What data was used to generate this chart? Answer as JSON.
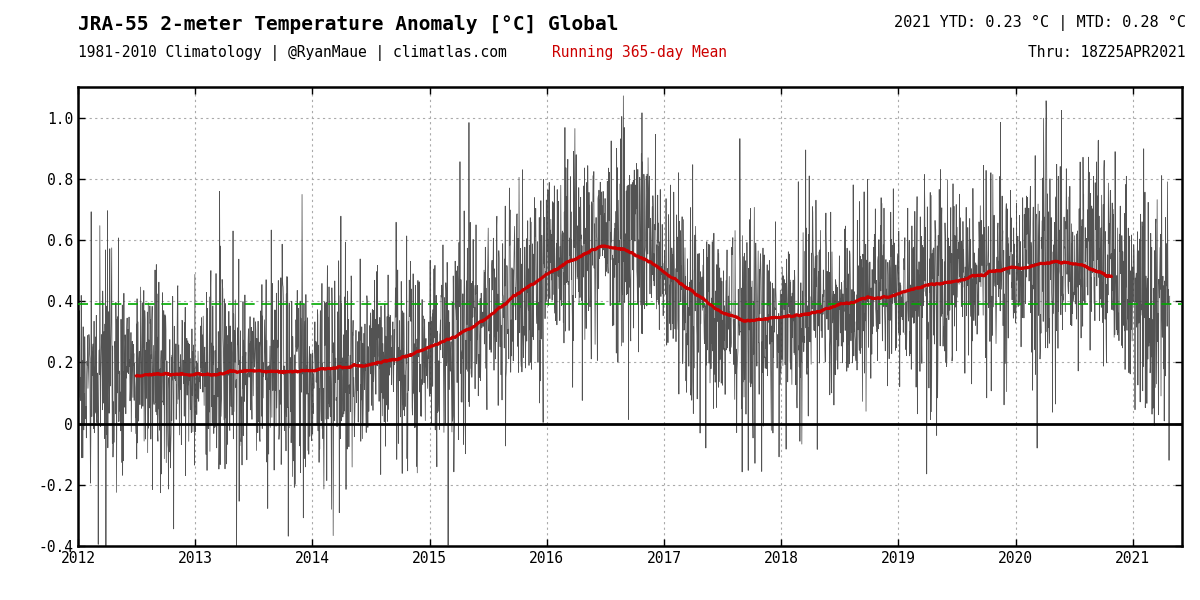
{
  "title_main": "JRA-55 2-meter Temperature Anomaly [°C] Global",
  "title_sub": "1981-2010 Climatology | @RyanMaue | climatlas.com",
  "title_right1": "2021 YTD: 0.23 °C | MTD: 0.28 °C",
  "title_right2": "Thru: 18Z25APR2021",
  "legend_label": "Running 365-day Mean",
  "ylim": [
    -0.4,
    1.1
  ],
  "yticks": [
    -0.4,
    -0.2,
    0.0,
    0.2,
    0.4,
    0.6,
    0.8,
    1.0
  ],
  "xlim_start": 2012.0,
  "xlim_end": 2021.42,
  "xticks": [
    2012,
    2013,
    2014,
    2015,
    2016,
    2017,
    2018,
    2019,
    2020,
    2021
  ],
  "hline_zero": 0.0,
  "hline_green": 0.39,
  "daily_color": "#404040",
  "running_color": "#cc0000",
  "green_line_color": "#00aa00",
  "background_color": "#ffffff",
  "title_fontsize": 14,
  "subtitle_fontsize": 10.5,
  "tick_fontsize": 10.5
}
